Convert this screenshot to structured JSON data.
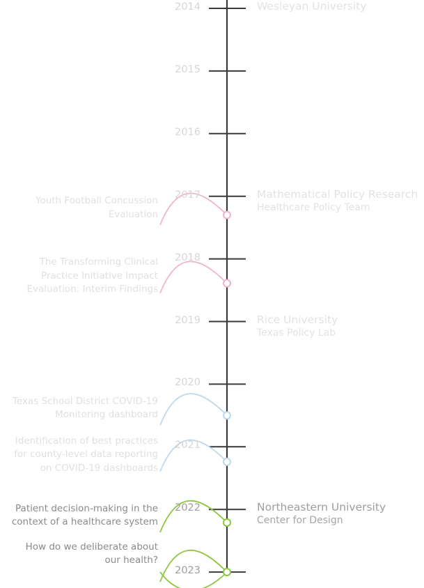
{
  "years": [
    "2014",
    "2015",
    "2016",
    "2017",
    "2018",
    "2019",
    "2020",
    "2021",
    "2022",
    "2023"
  ],
  "highlighted_years": [
    "2022",
    "2023"
  ],
  "organizations": [
    {
      "name": "Wesleyan University",
      "team": "",
      "start_year": 2014,
      "highlighted": false
    },
    {
      "name": "Mathematical Policy Research",
      "team": "Healthcare Policy Team",
      "start_year": 2017,
      "highlighted": false
    },
    {
      "name": "Rice University",
      "team": "Texas Policy Lab",
      "start_year": 2019,
      "highlighted": false
    },
    {
      "name": "Northeastern University",
      "team": "Center for Design",
      "start_year": 2022,
      "highlighted": true
    }
  ],
  "publications": [
    {
      "lines": [
        "Youth Football Concussion",
        "Evaluation"
      ],
      "year": 2017.3,
      "color": "#efb3cf",
      "highlighted": false
    },
    {
      "lines": [
        "The Transforming Clinical",
        "Practice Initiative Impact",
        "Evaluation: Interim Findings"
      ],
      "year": 2018.39,
      "color": "#efb3cf",
      "highlighted": false
    },
    {
      "lines": [
        "Texas School District COVID-19",
        "Monitoring dashboard"
      ],
      "year": 2020.5,
      "color": "#bcd8ec",
      "highlighted": false
    },
    {
      "lines": [
        "Identification of best practices",
        "for county-level data reporting",
        "on COVID-19 dashboards"
      ],
      "year": 2021.24,
      "color": "#bcd8ec",
      "highlighted": false
    },
    {
      "lines": [
        "Patient decision-making in the",
        "context of a healthcare system"
      ],
      "year": 2022.21,
      "color": "#8dc63f",
      "highlighted": true
    },
    {
      "lines": [
        "How do we deliberate about",
        "our health?"
      ],
      "year": 2023.0,
      "color": "#8dc63f",
      "highlighted": true
    }
  ],
  "colors": {
    "axis": "#3a3a3a",
    "dim_text": "#dcdcdc",
    "highlight_text": "#9a9a9a"
  }
}
